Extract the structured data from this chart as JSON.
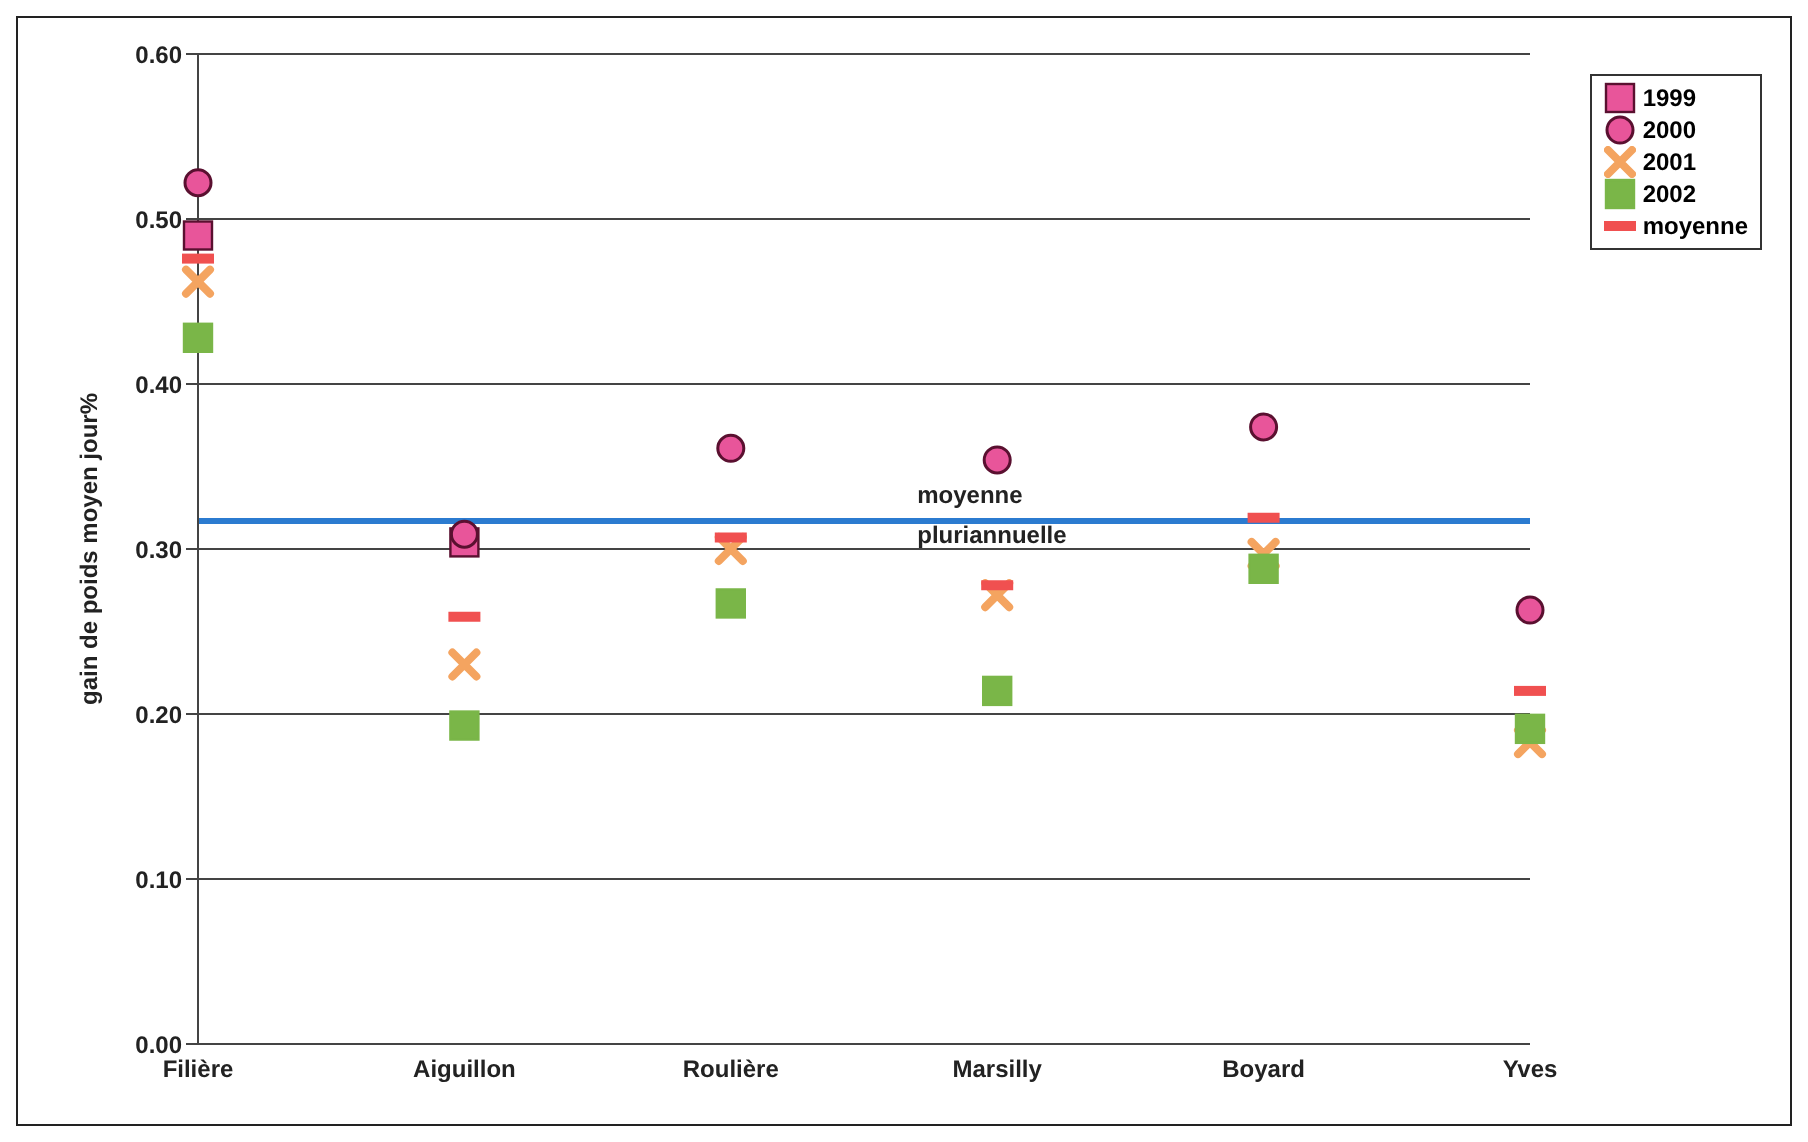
{
  "chart_data": {
    "type": "scatter",
    "ylabel": "gain de poids moyen jour%",
    "categories": [
      "Filière",
      "Aiguillon",
      "Roulière",
      "Marsilly",
      "Boyard",
      "Yves"
    ],
    "series": [
      {
        "name": "1999",
        "color": "#e8559a",
        "marker": "square",
        "values": [
          0.49,
          0.304,
          null,
          null,
          null,
          null
        ]
      },
      {
        "name": "2000",
        "color": "#e8559a",
        "marker": "circle",
        "values": [
          0.522,
          0.309,
          0.361,
          0.354,
          0.374,
          0.263
        ]
      },
      {
        "name": "2001",
        "color": "#f4a460",
        "marker": "cross",
        "values": [
          0.462,
          0.23,
          0.3,
          0.272,
          0.297,
          0.183
        ]
      },
      {
        "name": "2002",
        "color": "#7ab648",
        "marker": "square",
        "values": [
          0.428,
          0.193,
          0.267,
          0.214,
          0.288,
          0.191
        ]
      },
      {
        "name": "moyenne",
        "color": "#f05050",
        "values": [
          0.476,
          0.259,
          0.307,
          0.278,
          0.319,
          0.214
        ]
      }
    ],
    "ylim": [
      0,
      0.6
    ],
    "yticks": [
      {
        "value": 0,
        "label": "0.00"
      },
      {
        "value": 0.1,
        "label": "0.10"
      },
      {
        "value": 0.2,
        "label": "0.20"
      },
      {
        "value": 0.3,
        "label": "0.30"
      },
      {
        "value": 0.4,
        "label": "0.40"
      },
      {
        "value": 0.5,
        "label": "0.50"
      },
      {
        "value": 0.6,
        "label": "0.60"
      }
    ],
    "grid": "y",
    "legend": "top right",
    "ref_lines": [
      {
        "axis": "y",
        "value": 0.317,
        "label": "moyenne pluriannuelle",
        "color": "#2b7bd0"
      }
    ]
  }
}
